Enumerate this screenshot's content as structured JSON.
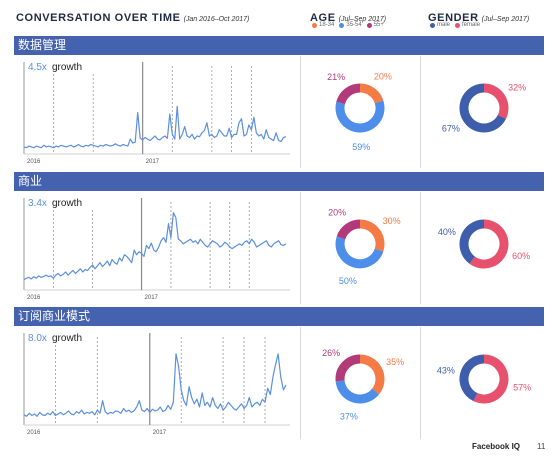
{
  "header": {
    "conversation_title": "CONVERSATION OVER TIME",
    "conversation_sub": "(Jan 2016–Oct 2017)",
    "age_title": "AGE",
    "age_sub": "(Jul–Sep 2017)",
    "gender_title": "GENDER",
    "gender_sub": "(Jul–Sep 2017)"
  },
  "legends": {
    "age": [
      {
        "label": "18-34",
        "color": "#f47b46"
      },
      {
        "label": "35-54",
        "color": "#4c8ee9"
      },
      {
        "label": "55+",
        "color": "#b23a7a"
      }
    ],
    "gender": [
      {
        "label": "male",
        "color": "#3e5eab"
      },
      {
        "label": "female",
        "color": "#e8516e"
      }
    ]
  },
  "footer": {
    "brand": "Facebook IQ",
    "page": "11"
  },
  "sections": [
    {
      "title": "数据管理"
    },
    {
      "title": "商业"
    },
    {
      "title": "订阅商业模式"
    }
  ],
  "chart_data": [
    {
      "type": "line",
      "title": "数据管理",
      "annotation": {
        "value": "4.5x",
        "text": "growth"
      },
      "x_tick_labels": [
        "2016",
        "2017"
      ],
      "year_break_index": 48,
      "dashed_marker_indices": [
        12,
        28,
        60,
        76,
        84,
        92
      ],
      "line_color": "#5b8fe0",
      "ylim": [
        0,
        100
      ],
      "values": [
        4,
        3,
        5,
        4,
        3,
        5,
        4,
        3,
        6,
        4,
        5,
        4,
        3,
        5,
        4,
        6,
        5,
        4,
        5,
        6,
        4,
        5,
        7,
        5,
        4,
        6,
        5,
        7,
        6,
        5,
        4,
        6,
        5,
        7,
        6,
        5,
        6,
        8,
        6,
        5,
        7,
        6,
        5,
        14,
        9,
        10,
        48,
        15,
        13,
        16,
        14,
        12,
        15,
        18,
        14,
        13,
        16,
        18,
        15,
        46,
        20,
        14,
        56,
        14,
        20,
        30,
        18,
        16,
        20,
        14,
        18,
        17,
        22,
        25,
        35,
        18,
        20,
        16,
        18,
        26,
        22,
        18,
        18,
        28,
        16,
        20,
        20,
        35,
        40,
        18,
        20,
        32,
        26,
        42,
        22,
        18,
        20,
        14,
        26,
        16,
        14,
        12,
        22,
        12,
        11,
        16,
        17
      ]
    },
    {
      "type": "line",
      "title": "商业",
      "annotation": {
        "value": "3.4x",
        "text": "growth"
      },
      "x_tick_labels": [
        "2016",
        "2017"
      ],
      "year_break_index": 48,
      "dashed_marker_indices": [
        12,
        28,
        60,
        76,
        84,
        92
      ],
      "line_color": "#5b8fe0",
      "ylim": [
        0,
        100
      ],
      "values": [
        8,
        10,
        11,
        9,
        12,
        10,
        13,
        11,
        12,
        14,
        12,
        13,
        10,
        14,
        16,
        13,
        15,
        18,
        14,
        17,
        20,
        16,
        19,
        22,
        18,
        21,
        20,
        24,
        27,
        22,
        26,
        30,
        25,
        28,
        32,
        26,
        34,
        30,
        28,
        36,
        32,
        40,
        38,
        34,
        30,
        46,
        40,
        44,
        42,
        38,
        52,
        48,
        55,
        46,
        44,
        50,
        58,
        62,
        56,
        80,
        62,
        94,
        88,
        60,
        58,
        54,
        56,
        58,
        60,
        56,
        58,
        54,
        60,
        56,
        52,
        50,
        54,
        58,
        56,
        54,
        50,
        52,
        56,
        54,
        50,
        48,
        50,
        52,
        54,
        52,
        56,
        58,
        54,
        60,
        56,
        50,
        52,
        54,
        56,
        58,
        52,
        50,
        54,
        56,
        58,
        53,
        52,
        54
      ]
    },
    {
      "type": "line",
      "title": "订阅商业模式",
      "annotation": {
        "value": "8.0x",
        "text": "growth"
      },
      "x_tick_labels": [
        "2016",
        "2017"
      ],
      "year_break_index": 48,
      "dashed_marker_indices": [
        12,
        28,
        60,
        76,
        84,
        92
      ],
      "line_color": "#5b8fe0",
      "ylim": [
        0,
        100
      ],
      "values": [
        8,
        6,
        10,
        7,
        9,
        6,
        11,
        8,
        7,
        10,
        8,
        12,
        7,
        9,
        11,
        8,
        10,
        13,
        9,
        8,
        12,
        10,
        14,
        9,
        11,
        10,
        12,
        8,
        14,
        10,
        26,
        12,
        9,
        11,
        10,
        13,
        12,
        10,
        16,
        12,
        14,
        11,
        13,
        18,
        26,
        14,
        12,
        16,
        11,
        15,
        13,
        14,
        18,
        12,
        14,
        20,
        15,
        24,
        86,
        70,
        40,
        26,
        20,
        44,
        30,
        22,
        28,
        18,
        36,
        20,
        24,
        18,
        30,
        20,
        16,
        22,
        14,
        18,
        24,
        20,
        16,
        14,
        18,
        22,
        16,
        20,
        30,
        18,
        22,
        24,
        20,
        28,
        24,
        42,
        34,
        56,
        72,
        86,
        56,
        40,
        46
      ]
    }
  ],
  "donuts": [
    {
      "age": [
        {
          "label": "18-34",
          "value": 20,
          "text": "20%"
        },
        {
          "label": "35-54",
          "value": 59,
          "text": "59%"
        },
        {
          "label": "55+",
          "value": 21,
          "text": "21%"
        }
      ],
      "gender": [
        {
          "label": "female",
          "value": 32,
          "text": "32%"
        },
        {
          "label": "male",
          "value": 67,
          "text": "67%"
        }
      ]
    },
    {
      "age": [
        {
          "label": "18-34",
          "value": 30,
          "text": "30%"
        },
        {
          "label": "35-54",
          "value": 50,
          "text": "50%"
        },
        {
          "label": "55+",
          "value": 20,
          "text": "20%"
        }
      ],
      "gender": [
        {
          "label": "female",
          "value": 60,
          "text": "60%"
        },
        {
          "label": "male",
          "value": 40,
          "text": "40%"
        }
      ]
    },
    {
      "age": [
        {
          "label": "18-34",
          "value": 35,
          "text": "35%"
        },
        {
          "label": "35-54",
          "value": 37,
          "text": "37%"
        },
        {
          "label": "55+",
          "value": 26,
          "text": "26%"
        }
      ],
      "gender": [
        {
          "label": "female",
          "value": 57,
          "text": "57%"
        },
        {
          "label": "male",
          "value": 43,
          "text": "43%"
        }
      ]
    }
  ]
}
